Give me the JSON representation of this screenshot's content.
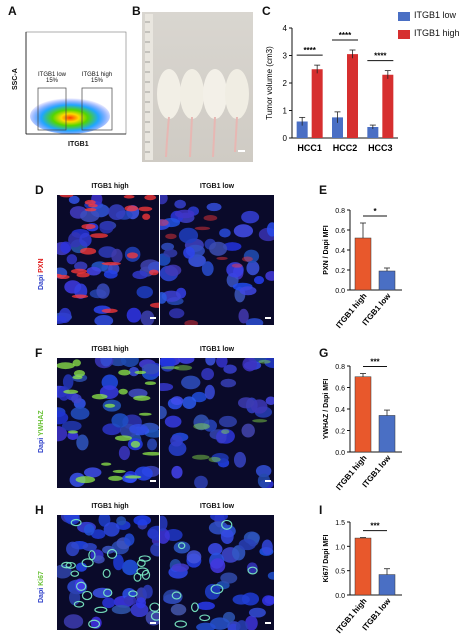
{
  "panels": {
    "A": "A",
    "B": "B",
    "C": "C",
    "D": "D",
    "E": "E",
    "F": "F",
    "G": "G",
    "H": "H",
    "I": "I"
  },
  "flow": {
    "ylabel": "SSC-A",
    "xlabel": "ITGB1",
    "gate_low": "ITGB1 low",
    "gate_low_pct": "15%",
    "gate_high": "ITGB1 high",
    "gate_high_pct": "15%"
  },
  "legend": {
    "low": "ITGB1 low",
    "high": "ITGB1 high",
    "low_color": "#4a6fc4",
    "high_color": "#d62f2f"
  },
  "colors": {
    "orange": "#e8582c",
    "blue": "#4a6fc4"
  },
  "micro_rows": [
    {
      "col_high": "ITGB1 high",
      "col_low": "ITGB1 low",
      "marker": "PXN",
      "dapi": "Dapi"
    },
    {
      "col_high": "ITGB1 high",
      "col_low": "ITGB1 low",
      "marker": "YWHAZ",
      "dapi": "Dapi"
    },
    {
      "col_high": "ITGB1 high",
      "col_low": "ITGB1 low",
      "marker": "Ki67",
      "dapi": "Dapi"
    }
  ],
  "chart_data": [
    {
      "type": "bar",
      "ylabel": "Tumor volume (cm3)",
      "categories": [
        "HCC1",
        "HCC2",
        "HCC3"
      ],
      "series": [
        {
          "name": "ITGB1 low",
          "values": [
            0.6,
            0.75,
            0.4
          ],
          "errors": [
            0.15,
            0.2,
            0.07
          ]
        },
        {
          "name": "ITGB1 high",
          "values": [
            2.5,
            3.05,
            2.3
          ],
          "errors": [
            0.15,
            0.15,
            0.15
          ]
        }
      ],
      "ylim": [
        0,
        4
      ],
      "yticks": [
        "0",
        "1",
        "2",
        "3",
        "4"
      ],
      "significance": [
        "****",
        "****",
        "****"
      ]
    },
    {
      "type": "bar",
      "ylabel": "PXN / Dapi MFI",
      "categories": [
        "ITGB1 high",
        "ITGB1 low"
      ],
      "values": [
        0.52,
        0.19
      ],
      "errors": [
        0.15,
        0.03
      ],
      "ylim": [
        0,
        0.8
      ],
      "yticks": [
        "0.0",
        "0.2",
        "0.4",
        "0.6",
        "0.8"
      ],
      "significance": "*"
    },
    {
      "type": "bar",
      "ylabel": "YWHAZ / Dapi MFI",
      "categories": [
        "ITGB1 high",
        "ITGB1 low"
      ],
      "values": [
        0.7,
        0.34
      ],
      "errors": [
        0.03,
        0.05
      ],
      "ylim": [
        0,
        0.8
      ],
      "yticks": [
        "0.0",
        "0.2",
        "0.4",
        "0.6",
        "0.8"
      ],
      "significance": "***"
    },
    {
      "type": "bar",
      "ylabel": "Ki67/ Dapi MFI",
      "categories": [
        "ITGB1 high",
        "ITGB1 low"
      ],
      "values": [
        1.17,
        0.42
      ],
      "errors": [
        0.01,
        0.12
      ],
      "ylim": [
        0,
        1.5
      ],
      "yticks": [
        "0.0",
        "0.5",
        "1.0",
        "1.5"
      ],
      "significance": "***"
    }
  ]
}
